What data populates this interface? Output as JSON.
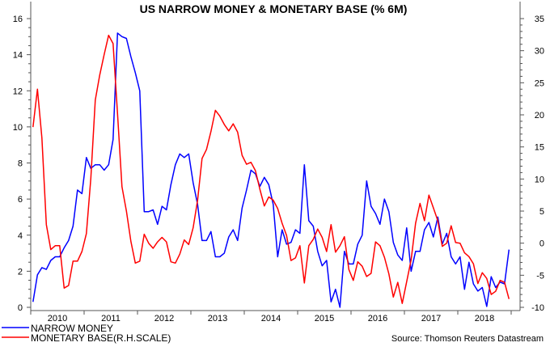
{
  "chart_data": {
    "type": "line",
    "title": "US NARROW MONEY & MONETARY BASE (% 6M)",
    "source": "Source: Thomson Reuters Datastream",
    "x_tick_labels": [
      "2010",
      "2011",
      "2012",
      "2013",
      "2014",
      "2015",
      "2016",
      "2017",
      "2018"
    ],
    "y_left": {
      "lim": [
        0,
        16
      ],
      "ticks": [
        0,
        2,
        4,
        6,
        8,
        10,
        12,
        14,
        16
      ]
    },
    "y_right": {
      "lim": [
        -10,
        35
      ],
      "ticks": [
        -10,
        -5,
        0,
        5,
        10,
        15,
        20,
        25,
        30,
        35
      ]
    },
    "grid": false,
    "legend_placement": "bottom-left",
    "x": [
      "2010-01",
      "2010-02",
      "2010-03",
      "2010-04",
      "2010-05",
      "2010-06",
      "2010-07",
      "2010-08",
      "2010-09",
      "2010-10",
      "2010-11",
      "2010-12",
      "2011-01",
      "2011-02",
      "2011-03",
      "2011-04",
      "2011-05",
      "2011-06",
      "2011-07",
      "2011-08",
      "2011-09",
      "2011-10",
      "2011-11",
      "2011-12",
      "2012-01",
      "2012-02",
      "2012-03",
      "2012-04",
      "2012-05",
      "2012-06",
      "2012-07",
      "2012-08",
      "2012-09",
      "2012-10",
      "2012-11",
      "2012-12",
      "2013-01",
      "2013-02",
      "2013-03",
      "2013-04",
      "2013-05",
      "2013-06",
      "2013-07",
      "2013-08",
      "2013-09",
      "2013-10",
      "2013-11",
      "2013-12",
      "2014-01",
      "2014-02",
      "2014-03",
      "2014-04",
      "2014-05",
      "2014-06",
      "2014-07",
      "2014-08",
      "2014-09",
      "2014-10",
      "2014-11",
      "2014-12",
      "2015-01",
      "2015-02",
      "2015-03",
      "2015-04",
      "2015-05",
      "2015-06",
      "2015-07",
      "2015-08",
      "2015-09",
      "2015-10",
      "2015-11",
      "2015-12",
      "2016-01",
      "2016-02",
      "2016-03",
      "2016-04",
      "2016-05",
      "2016-06",
      "2016-07",
      "2016-08",
      "2016-09",
      "2016-10",
      "2016-11",
      "2016-12",
      "2017-01",
      "2017-02",
      "2017-03",
      "2017-04",
      "2017-05",
      "2017-06",
      "2017-07",
      "2017-08",
      "2017-09",
      "2017-10",
      "2017-11",
      "2017-12",
      "2018-01",
      "2018-02",
      "2018-03",
      "2018-04",
      "2018-05",
      "2018-06",
      "2018-07",
      "2018-08",
      "2018-09",
      "2018-10",
      "2018-11",
      "2018-12"
    ],
    "series": [
      {
        "name": "NARROW MONEY",
        "axis": "left",
        "color": "#0000ff",
        "values": [
          0.3,
          1.8,
          2.2,
          2.1,
          2.6,
          2.8,
          2.8,
          3.3,
          3.7,
          4.5,
          6.5,
          6.3,
          8.3,
          7.7,
          7.9,
          7.9,
          7.6,
          7.9,
          9.3,
          15.2,
          15.0,
          14.9,
          13.9,
          13.0,
          12.0,
          5.3,
          5.3,
          5.4,
          4.6,
          5.6,
          5.4,
          6.8,
          7.9,
          8.5,
          8.3,
          8.5,
          6.9,
          5.7,
          3.7,
          3.7,
          4.2,
          2.8,
          2.8,
          3.0,
          3.9,
          4.3,
          3.7,
          5.5,
          6.5,
          7.6,
          7.4,
          6.7,
          7.2,
          6.8,
          5.7,
          2.8,
          4.3,
          3.5,
          3.6,
          4.3,
          4.1,
          7.9,
          4.8,
          4.5,
          3.1,
          2.3,
          2.6,
          0.3,
          1.0,
          0.0,
          3.1,
          2.4,
          2.4,
          3.5,
          4.0,
          7.0,
          5.6,
          5.2,
          4.6,
          6.0,
          5.3,
          3.6,
          2.9,
          2.6,
          4.4,
          2.0,
          3.1,
          3.1,
          4.3,
          4.7,
          3.9,
          5.0,
          3.5,
          4.1,
          2.8,
          2.4,
          2.8,
          1.0,
          2.5,
          1.3,
          0.9,
          1.1,
          0.05,
          1.7,
          1.1,
          1.4,
          1.3,
          3.2
        ]
      },
      {
        "name": "MONETARY BASE(R.H.SCALE)",
        "axis": "right",
        "color": "#ff0000",
        "values": [
          18.1,
          24.0,
          16.4,
          2.9,
          -1.0,
          -0.4,
          -0.4,
          -7.0,
          -6.6,
          -2.8,
          -2.8,
          -1.3,
          1.5,
          10.1,
          22.3,
          26.2,
          29.4,
          32.4,
          31.1,
          20.2,
          8.8,
          5.0,
          0.3,
          -3.1,
          -2.8,
          1.4,
          0.0,
          -0.8,
          0.2,
          0.9,
          0.2,
          -2.9,
          -3.1,
          -1.7,
          0.5,
          -0.2,
          2.4,
          6.7,
          13.2,
          14.6,
          17.4,
          20.7,
          19.8,
          18.5,
          17.5,
          18.6,
          17.3,
          13.7,
          12.3,
          12.6,
          11.3,
          8.4,
          5.8,
          7.2,
          6.7,
          5.4,
          3.1,
          1.2,
          -2.7,
          -2.3,
          -0.4,
          -6.2,
          -0.4,
          0.6,
          2.2,
          0.9,
          -1.3,
          2.9,
          -1.4,
          -0.4,
          1.0,
          -4.1,
          -5.8,
          -2.9,
          -3.6,
          -5.2,
          -4.7,
          0.2,
          -0.4,
          -2.2,
          -4.8,
          -8.4,
          -6.1,
          -9.4,
          -6.0,
          -2.6,
          3.1,
          6.2,
          3.5,
          7.5,
          5.5,
          3.5,
          -0.5,
          0.0,
          2.7,
          0.1,
          0.0,
          -1.5,
          -2.1,
          -3.2,
          -6.3,
          -4.6,
          -5.5,
          -8.0,
          -7.5,
          -5.8,
          -6.1,
          -8.7
        ]
      }
    ]
  }
}
